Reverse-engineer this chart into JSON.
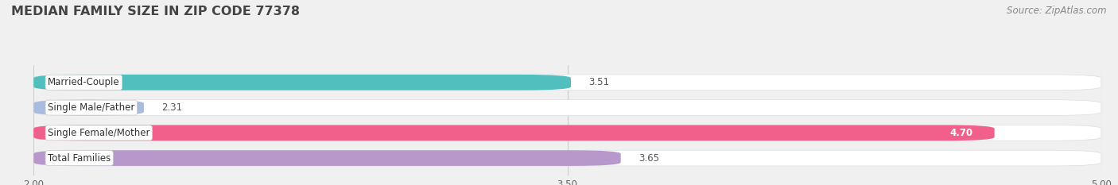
{
  "title": "MEDIAN FAMILY SIZE IN ZIP CODE 77378",
  "source": "Source: ZipAtlas.com",
  "categories": [
    "Married-Couple",
    "Single Male/Father",
    "Single Female/Mother",
    "Total Families"
  ],
  "values": [
    3.51,
    2.31,
    4.7,
    3.65
  ],
  "bar_colors": [
    "#52bfbf",
    "#aabcde",
    "#f0608a",
    "#b898cc"
  ],
  "xlim": [
    2.0,
    5.0
  ],
  "xticks": [
    2.0,
    3.5,
    5.0
  ],
  "xtick_labels": [
    "2.00",
    "3.50",
    "5.00"
  ],
  "bar_height": 0.62,
  "bg_color": "#f0f0f0",
  "bar_bg_color": "#ffffff",
  "title_fontsize": 11.5,
  "label_fontsize": 8.5,
  "value_fontsize": 8.5,
  "source_fontsize": 8.5,
  "value_inside_threshold": 4.6
}
